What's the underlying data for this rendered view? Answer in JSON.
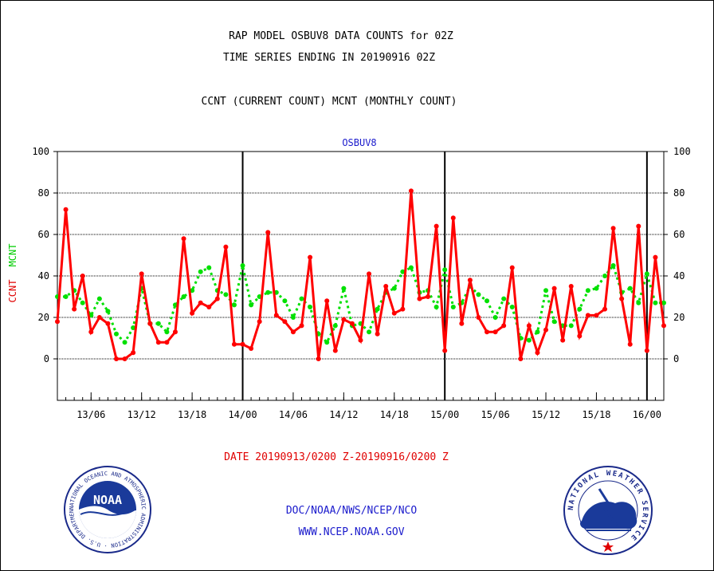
{
  "header": {
    "line1": "RAP MODEL OSBUV8 DATA COUNTS for 02Z",
    "line2": "TIME SERIES ENDING IN 20190916 02Z",
    "line3": "CCNT (CURRENT COUNT) MCNT (MONTHLY COUNT)"
  },
  "footer": {
    "date_range": "DATE 20190913/0200 Z-20190916/0200 Z",
    "org": "DOC/NOAA/NWS/NCEP/NCO",
    "url": "WWW.NCEP.NOAA.GOV"
  },
  "logos": {
    "noaa_text": "NOAA",
    "noaa_ring_text": "NATIONAL OCEANIC AND ATMOSPHERIC ADMINISTRATION · U.S. DEPARTMENT OF COMMERCE ·",
    "nws_ring_text": "NATIONAL WEATHER SERVICE"
  },
  "chart_data": {
    "type": "line",
    "title": "OSBUV8",
    "ylabel_left_1": "CCNT",
    "ylabel_left_2": "MCNT",
    "ylim": [
      -20,
      100
    ],
    "yticks": [
      0,
      20,
      40,
      60,
      80,
      100
    ],
    "x_start": "2019-09-13 02Z",
    "x_step_hours": 1,
    "x_end": "2019-09-16 02Z",
    "xtick_labels": [
      "13/06",
      "13/12",
      "13/18",
      "14/00",
      "14/06",
      "14/12",
      "14/18",
      "15/00",
      "15/06",
      "15/12",
      "15/18",
      "16/00"
    ],
    "day_boundaries": [
      "14/00",
      "15/00",
      "16/00"
    ],
    "grid": true,
    "colors": {
      "ccnt": "#ff0000",
      "mcnt": "#00e000",
      "title": "#1a1acc"
    },
    "series": [
      {
        "name": "CCNT",
        "style": "solid",
        "values": [
          18,
          72,
          24,
          40,
          13,
          20,
          17,
          0,
          0,
          3,
          41,
          17,
          8,
          8,
          13,
          58,
          22,
          27,
          25,
          29,
          54,
          7,
          7,
          5,
          18,
          61,
          21,
          18,
          13,
          16,
          49,
          0,
          28,
          4,
          19,
          17,
          9,
          41,
          12,
          35,
          22,
          24,
          81,
          29,
          30,
          64,
          4,
          68,
          17,
          38,
          20,
          13,
          13,
          16,
          44,
          0,
          16,
          3,
          14,
          34,
          9,
          35,
          11,
          21,
          21,
          24,
          63,
          29,
          7,
          64,
          4,
          49,
          16
        ]
      },
      {
        "name": "MCNT",
        "style": "dotted",
        "values": [
          30,
          30,
          33,
          27,
          21,
          29,
          23,
          12,
          8,
          15,
          34,
          17,
          17,
          13,
          26,
          30,
          33,
          42,
          44,
          33,
          31,
          26,
          45,
          26,
          30,
          32,
          32,
          28,
          20,
          29,
          25,
          12,
          8,
          16,
          34,
          16,
          17,
          13,
          24,
          32,
          34,
          42,
          44,
          32,
          33,
          25,
          43,
          25,
          27,
          35,
          31,
          28,
          20,
          29,
          25,
          10,
          9,
          13,
          33,
          18,
          16,
          16,
          24,
          33,
          34,
          40,
          45,
          32,
          34,
          27,
          41,
          27,
          27
        ]
      }
    ]
  }
}
